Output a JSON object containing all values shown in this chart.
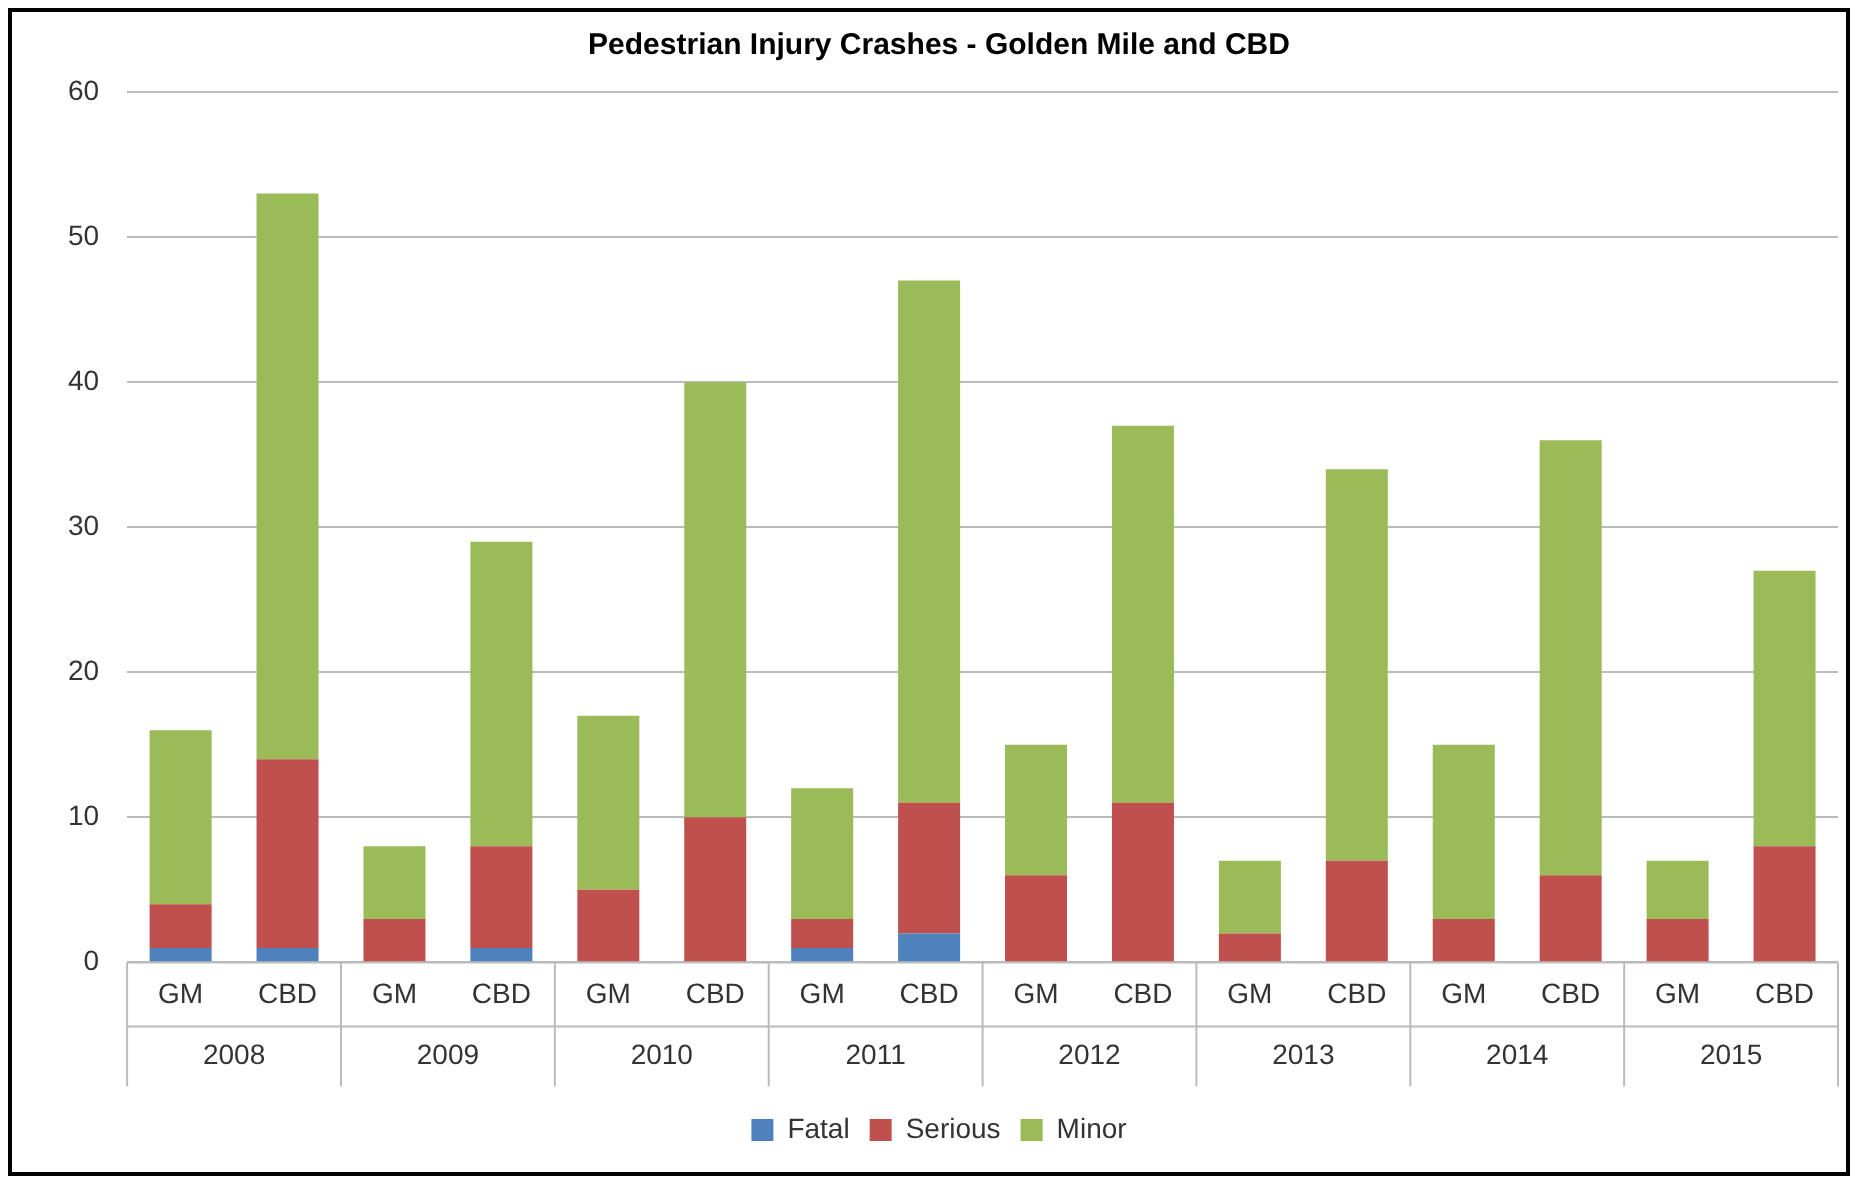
{
  "chart_data": {
    "type": "bar",
    "title": "Pedestrian Injury Crashes - Golden Mile and CBD",
    "stacked": true,
    "categories": [
      "GM",
      "CBD",
      "GM",
      "CBD",
      "GM",
      "CBD",
      "GM",
      "CBD",
      "GM",
      "CBD",
      "GM",
      "CBD",
      "GM",
      "CBD",
      "GM",
      "CBD"
    ],
    "series": [
      {
        "name": "Fatal",
        "color": "#4f81bd",
        "values": [
          1,
          1,
          0,
          1,
          0,
          0,
          1,
          2,
          0,
          0,
          0,
          0,
          0,
          0,
          0,
          0
        ]
      },
      {
        "name": "Serious",
        "color": "#c0504d",
        "values": [
          3,
          13,
          3,
          7,
          5,
          10,
          2,
          9,
          6,
          11,
          2,
          7,
          3,
          6,
          3,
          8
        ]
      },
      {
        "name": "Minor",
        "color": "#9bbb59",
        "values": [
          12,
          39,
          5,
          21,
          12,
          30,
          9,
          36,
          9,
          26,
          5,
          27,
          12,
          30,
          4,
          19
        ]
      }
    ],
    "annotations": [
      "2008",
      "2009",
      "2010",
      "2011",
      "2012",
      "2013",
      "2014",
      "2015"
    ],
    "ylim": [
      0,
      60
    ],
    "yticks": [
      0,
      10,
      20,
      30,
      40,
      50,
      60
    ],
    "grid": "y",
    "legend": "bottom"
  }
}
